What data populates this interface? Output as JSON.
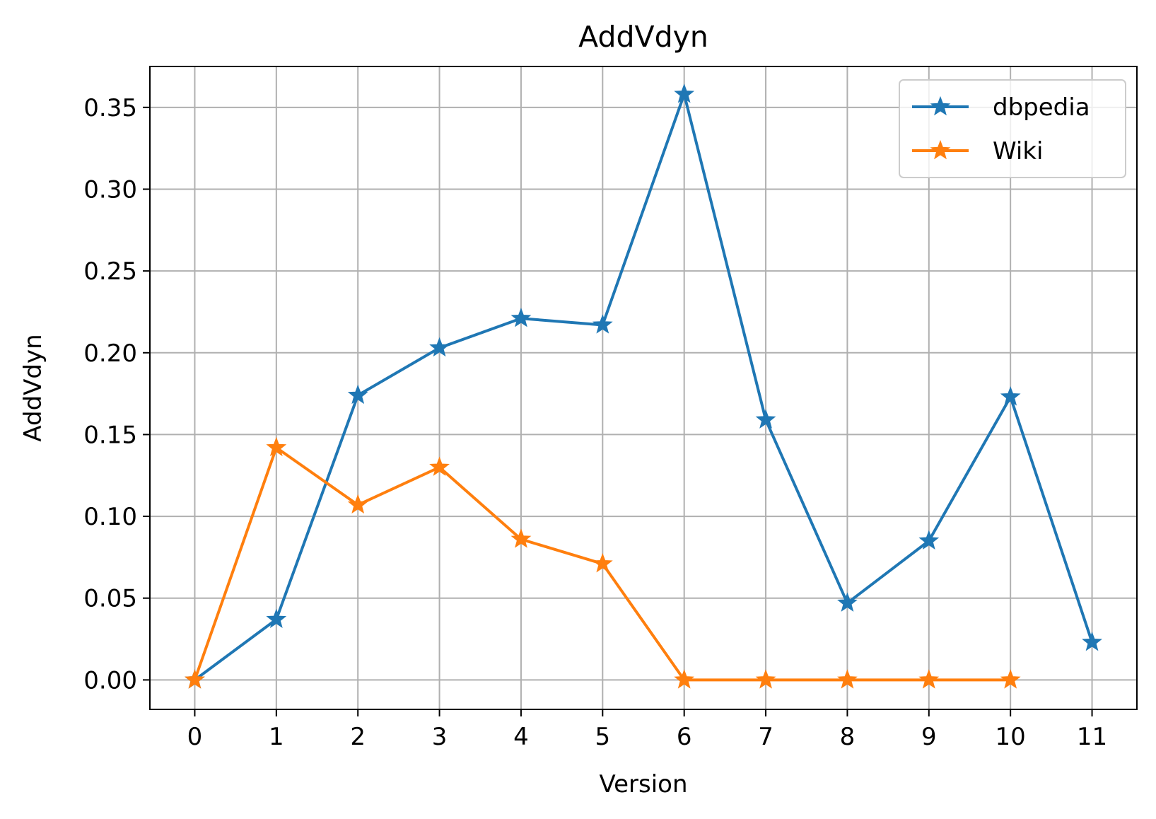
{
  "chart_data": {
    "type": "line",
    "title": "AddVdyn",
    "xlabel": "Version",
    "ylabel": "AddVdyn",
    "x": [
      0,
      1,
      2,
      3,
      4,
      5,
      6,
      7,
      8,
      9,
      10,
      11
    ],
    "xlim": [
      -0.55,
      11.55
    ],
    "ylim": [
      -0.018,
      0.375
    ],
    "x_ticks": [
      "0",
      "1",
      "2",
      "3",
      "4",
      "5",
      "6",
      "7",
      "8",
      "9",
      "10",
      "11"
    ],
    "y_ticks": [
      0.0,
      0.05,
      0.1,
      0.15,
      0.2,
      0.25,
      0.3,
      0.35
    ],
    "y_tick_labels": [
      "0.00",
      "0.05",
      "0.10",
      "0.15",
      "0.20",
      "0.25",
      "0.30",
      "0.35"
    ],
    "grid": true,
    "legend_position": "top-right",
    "marker": "star",
    "series": [
      {
        "name": "dbpedia",
        "color": "#1f77b4",
        "x": [
          0,
          1,
          2,
          3,
          4,
          5,
          6,
          7,
          8,
          9,
          10,
          11
        ],
        "values": [
          0.0,
          0.037,
          0.174,
          0.203,
          0.221,
          0.217,
          0.358,
          0.159,
          0.047,
          0.085,
          0.173,
          0.023
        ]
      },
      {
        "name": "Wiki",
        "color": "#ff7f0e",
        "x": [
          0,
          1,
          2,
          3,
          4,
          5,
          6,
          7,
          8,
          9,
          10
        ],
        "values": [
          0.0,
          0.142,
          0.107,
          0.13,
          0.086,
          0.071,
          0.0,
          0.0,
          0.0,
          0.0,
          0.0
        ]
      }
    ]
  }
}
